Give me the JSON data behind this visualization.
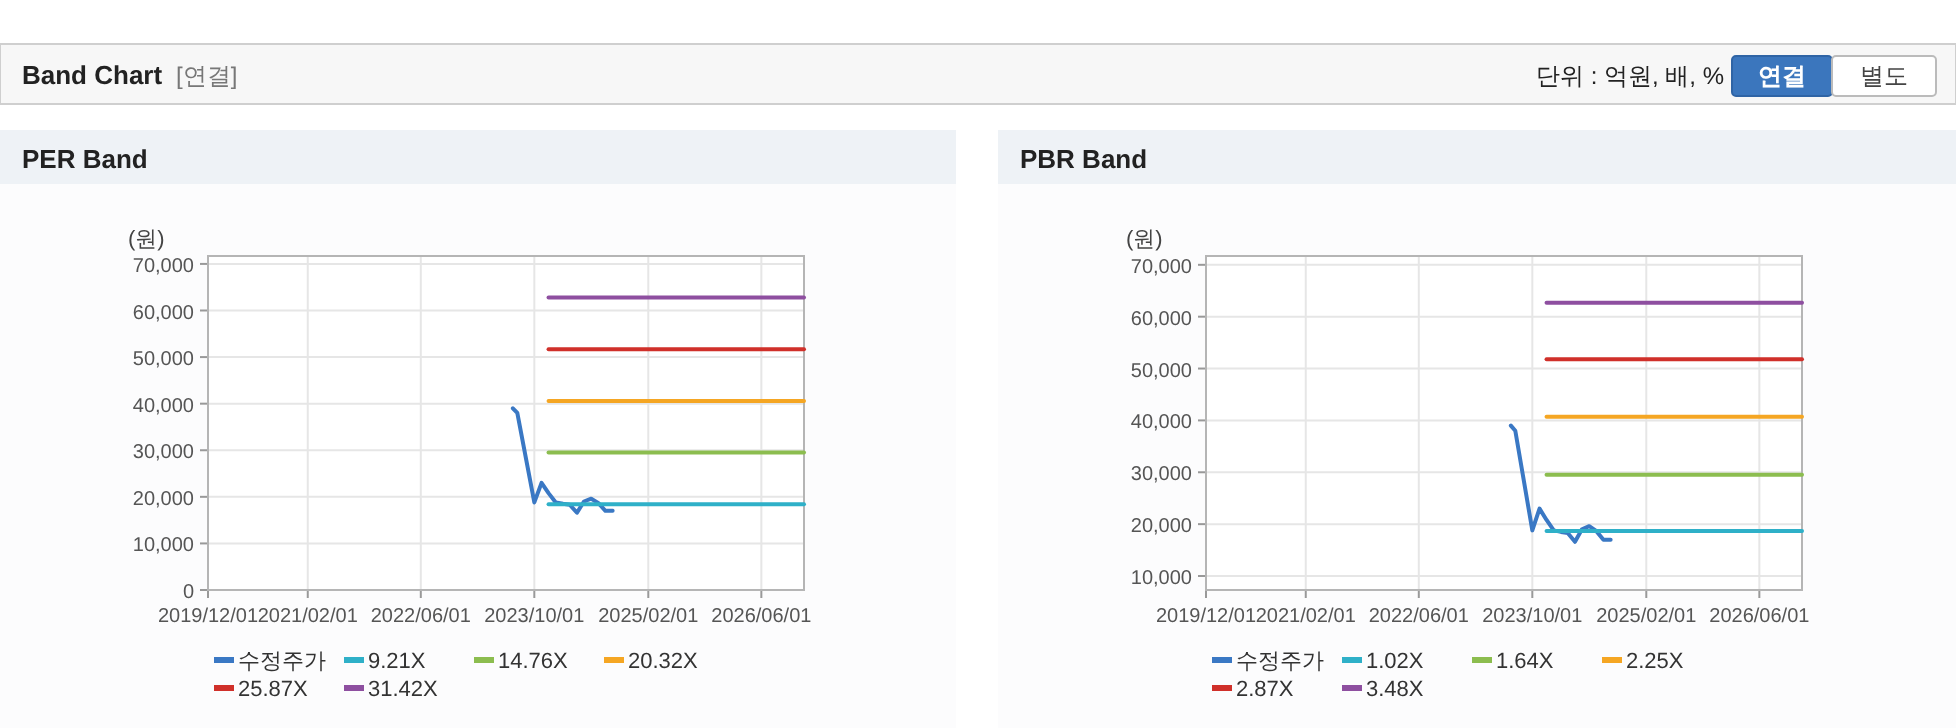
{
  "chart_data": [
    {
      "type": "line",
      "title": "PER Band",
      "ylabel": "(원)",
      "annotations": [
        "Band Chart",
        "[연결]",
        "단위 : 억원, 배, %",
        "연결",
        "별도"
      ],
      "xlim": [
        "2019-12-01",
        "2026-12-01"
      ],
      "xticks": [
        {
          "value": "2019-12-01",
          "label": "2019/12/01"
        },
        {
          "value": "2021-02-01",
          "label": "2021/02/01"
        },
        {
          "value": "2022-06-01",
          "label": "2022/06/01"
        },
        {
          "value": "2023-10-01",
          "label": "2023/10/01"
        },
        {
          "value": "2025-02-01",
          "label": "2025/02/01"
        },
        {
          "value": "2026-06-01",
          "label": "2026/06/01"
        }
      ],
      "ylim": [
        0,
        71700
      ],
      "yticks": [
        {
          "value": 0,
          "label": "0"
        },
        {
          "value": 10000,
          "label": "10,000"
        },
        {
          "value": 20000,
          "label": "20,000"
        },
        {
          "value": 30000,
          "label": "30,000"
        },
        {
          "value": 40000,
          "label": "40,000"
        },
        {
          "value": 50000,
          "label": "50,000"
        },
        {
          "value": 60000,
          "label": "60,000"
        },
        {
          "value": 70000,
          "label": "70,000"
        }
      ],
      "grid": true,
      "legend": "bottom",
      "marker": "none",
      "line_style": "solid",
      "series": [
        {
          "name": "수정주가",
          "color": "#3a78c4",
          "x": [
            "2023-07-01",
            "2023-07-20",
            "2023-10-01",
            "2023-11-01",
            "2023-12-01",
            "2024-01-01",
            "2024-02-01",
            "2024-03-01",
            "2024-04-01",
            "2024-05-01",
            "2024-06-01",
            "2024-07-01",
            "2024-08-01",
            "2024-09-01"
          ],
          "values": [
            39000,
            38000,
            18800,
            23000,
            20800,
            18800,
            18500,
            18300,
            16600,
            19000,
            19600,
            18700,
            17000,
            17000
          ]
        },
        {
          "name": "9.21X",
          "color": "#2fb0c8",
          "x": [
            "2023-12-01",
            "2026-12-01"
          ],
          "values": [
            18400,
            18400
          ]
        },
        {
          "name": "14.76X",
          "color": "#8cbd4f",
          "x": [
            "2023-12-01",
            "2026-12-01"
          ],
          "values": [
            29500,
            29500
          ]
        },
        {
          "name": "20.32X",
          "color": "#f5a623",
          "x": [
            "2023-12-01",
            "2026-12-01"
          ],
          "values": [
            40600,
            40600
          ]
        },
        {
          "name": "25.87X",
          "color": "#d0302a",
          "x": [
            "2023-12-01",
            "2026-12-01"
          ],
          "values": [
            51700,
            51700
          ]
        },
        {
          "name": "31.42X",
          "color": "#8e4fa0",
          "x": [
            "2023-12-01",
            "2026-12-01"
          ],
          "values": [
            62800,
            62800
          ]
        }
      ]
    },
    {
      "type": "line",
      "title": "PBR Band",
      "ylabel": "(원)",
      "xlim": [
        "2019-12-01",
        "2026-12-01"
      ],
      "xticks": [
        {
          "value": "2019-12-01",
          "label": "2019/12/01"
        },
        {
          "value": "2021-02-01",
          "label": "2021/02/01"
        },
        {
          "value": "2022-06-01",
          "label": "2022/06/01"
        },
        {
          "value": "2023-10-01",
          "label": "2023/10/01"
        },
        {
          "value": "2025-02-01",
          "label": "2025/02/01"
        },
        {
          "value": "2026-06-01",
          "label": "2026/06/01"
        }
      ],
      "ylim": [
        7300,
        71700
      ],
      "yticks": [
        {
          "value": 10000,
          "label": "10,000"
        },
        {
          "value": 20000,
          "label": "20,000"
        },
        {
          "value": 30000,
          "label": "30,000"
        },
        {
          "value": 40000,
          "label": "40,000"
        },
        {
          "value": 50000,
          "label": "50,000"
        },
        {
          "value": 60000,
          "label": "60,000"
        },
        {
          "value": 70000,
          "label": "70,000"
        }
      ],
      "grid": true,
      "legend": "bottom",
      "marker": "none",
      "line_style": "solid",
      "series": [
        {
          "name": "수정주가",
          "color": "#3a78c4",
          "x": [
            "2023-07-01",
            "2023-07-20",
            "2023-10-01",
            "2023-11-01",
            "2023-12-01",
            "2024-01-01",
            "2024-02-01",
            "2024-03-01",
            "2024-04-01",
            "2024-05-01",
            "2024-06-01",
            "2024-07-01",
            "2024-08-01",
            "2024-09-01"
          ],
          "values": [
            39000,
            38000,
            18800,
            23000,
            20800,
            18800,
            18500,
            18300,
            16600,
            19000,
            19600,
            18700,
            17000,
            17000
          ]
        },
        {
          "name": "1.02X",
          "color": "#2fb0c8",
          "x": [
            "2023-12-01",
            "2026-12-01"
          ],
          "values": [
            18700,
            18700
          ]
        },
        {
          "name": "1.64X",
          "color": "#8cbd4f",
          "x": [
            "2023-12-01",
            "2026-12-01"
          ],
          "values": [
            29500,
            29500
          ]
        },
        {
          "name": "2.25X",
          "color": "#f5a623",
          "x": [
            "2023-12-01",
            "2026-12-01"
          ],
          "values": [
            40700,
            40700
          ]
        },
        {
          "name": "2.87X",
          "color": "#d0302a",
          "x": [
            "2023-12-01",
            "2026-12-01"
          ],
          "values": [
            51800,
            51800
          ]
        },
        {
          "name": "3.48X",
          "color": "#8e4fa0",
          "x": [
            "2023-12-01",
            "2026-12-01"
          ],
          "values": [
            62700,
            62700
          ]
        }
      ]
    }
  ]
}
